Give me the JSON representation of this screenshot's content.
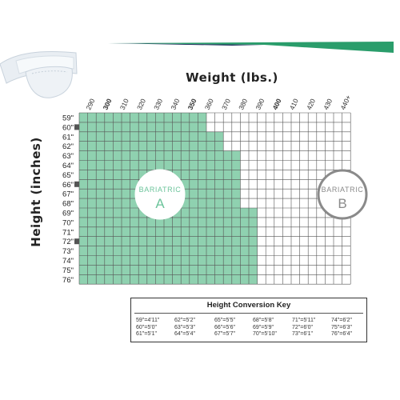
{
  "colors": {
    "fill_a": "#8fd1b0",
    "grid_line": "#555555",
    "stripe_green": "#2a9d6b",
    "stripe_navy": "#1f2d5c",
    "badge_b": "#8a8a8a",
    "badge_a_text": "#6cc49b"
  },
  "chart_data": {
    "type": "heatmap",
    "title": "",
    "xlabel": "Weight (lbs.)",
    "ylabel": "Height (inches)",
    "x_ticks": [
      "290",
      "300",
      "310",
      "320",
      "330",
      "340",
      "350",
      "360",
      "370",
      "380",
      "390",
      "400",
      "410",
      "420",
      "430",
      "440+"
    ],
    "x_ticks_bold": [
      "300",
      "350",
      "400"
    ],
    "y_ticks": [
      "59\"",
      "60\"",
      "61\"",
      "62\"",
      "63\"",
      "64\"",
      "65\"",
      "66\"",
      "67\"",
      "68\"",
      "69\"",
      "70\"",
      "71\"",
      "72\"",
      "73\"",
      "74\"",
      "75\"",
      "76\""
    ],
    "y_ticks_marked": [
      "60\"",
      "66\"",
      "72\""
    ],
    "weight_steps_per_label": 2,
    "regions": [
      {
        "name": "Bariatric A",
        "max_weight_by_height": {
          "59\"": 360,
          "60\"": 360,
          "61\"": 370,
          "62\"": 370,
          "63\"": 380,
          "64\"": 380,
          "65\"": 380,
          "66\"": 380,
          "67\"": 380,
          "68\"": 380,
          "69\"": 390,
          "70\"": 390,
          "71\"": 390,
          "72\"": 390,
          "73\"": 390,
          "74\"": 390,
          "75\"": 390,
          "76\"": 390
        }
      },
      {
        "name": "Bariatric B",
        "range": "all remaining cells"
      }
    ],
    "badges": [
      {
        "line1": "BARIATRIC",
        "line2": "A"
      },
      {
        "line1": "BARIATRIC",
        "line2": "B"
      }
    ],
    "grid": true
  },
  "conversion_key": {
    "title": "Height Conversion Key",
    "columns": [
      [
        "59\"=4'11\"",
        "60\"=5'0\"",
        "61\"=5'1\""
      ],
      [
        "62\"=5'2\"",
        "63\"=5'3\"",
        "64\"=5'4\""
      ],
      [
        "65\"=5'5\"",
        "66\"=5'6\"",
        "67\"=5'7\""
      ],
      [
        "68\"=5'8\"",
        "69\"=5'9\"",
        "70\"=5'10\""
      ],
      [
        "71\"=5'11\"",
        "72\"=6'0\"",
        "73\"=6'1\""
      ],
      [
        "74\"=6'2\"",
        "75\"=6'3\"",
        "76\"=6'4\""
      ]
    ]
  }
}
